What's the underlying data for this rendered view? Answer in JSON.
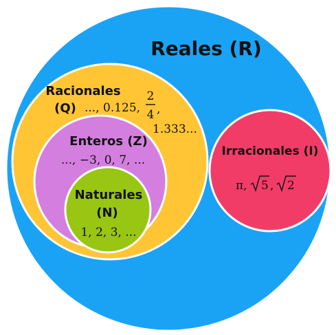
{
  "colors": {
    "reales": "#1aa3f5",
    "racionales": "#ffc535",
    "enteros": "#d47fe0",
    "naturales": "#99c513",
    "irracionales": "#f23c68",
    "outline": "#ffffff",
    "text": "#111111"
  },
  "sets": {
    "reales": {
      "label": "Reales (R)"
    },
    "racionales": {
      "label_line1": "Racionales",
      "label_line2": "(Q)",
      "examples_prefix": "..., 0.125,",
      "fraction_numerator": "2",
      "fraction_denominator": "4",
      "fraction_comma": ",",
      "examples_suffix": "1.333..."
    },
    "enteros": {
      "label": "Enteros (Z)",
      "examples": "..., −3, 0, 7, ..."
    },
    "naturales": {
      "label_line1": "Naturales",
      "label_line2": "(N)",
      "examples": "1, 2, 3, ..."
    },
    "irracionales": {
      "label": "Irracionales (I)",
      "examples_pi": "π,",
      "sqrt_radicand_1": "5",
      "examples_comma": ",",
      "sqrt_radicand_2": "2"
    }
  }
}
